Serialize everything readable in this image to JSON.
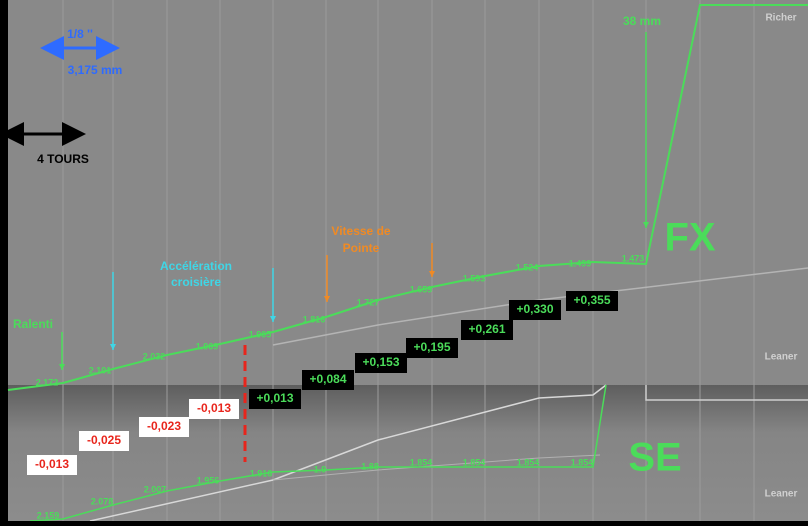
{
  "scale": {
    "step": "1/8 ''",
    "step_mm": "3,175 mm",
    "turns": "4 TOURS"
  },
  "zones": {
    "idle": "Ralenti",
    "cruise": [
      "Accélération",
      "croisière"
    ],
    "top_speed": [
      "Vitesse de",
      "Pointe"
    ],
    "length": "38 mm"
  },
  "fx": {
    "label": "FX",
    "richer": "Richer",
    "leaner": "Leaner",
    "points": [
      "2.172",
      "2.101",
      "2.032",
      "1.969",
      "1.905",
      "1.816",
      "1.727",
      "1.659",
      "1.593",
      "1.524",
      "1.499",
      "1.473"
    ],
    "gains": [
      "+0,013",
      "+0,084",
      "+0,153",
      "+0,195",
      "+0,261",
      "+0,330",
      "+0,355"
    ]
  },
  "se": {
    "label": "SE",
    "leaner": "Leaner",
    "points": [
      "2.159",
      "2.078",
      "2.007",
      "1.956",
      "1.916",
      "1.9",
      "1.88",
      "1.854",
      "1.854",
      "1.854",
      "1.854"
    ],
    "losses": [
      "-0,013",
      "-0,023",
      "-0,025",
      "-0,013"
    ]
  }
}
